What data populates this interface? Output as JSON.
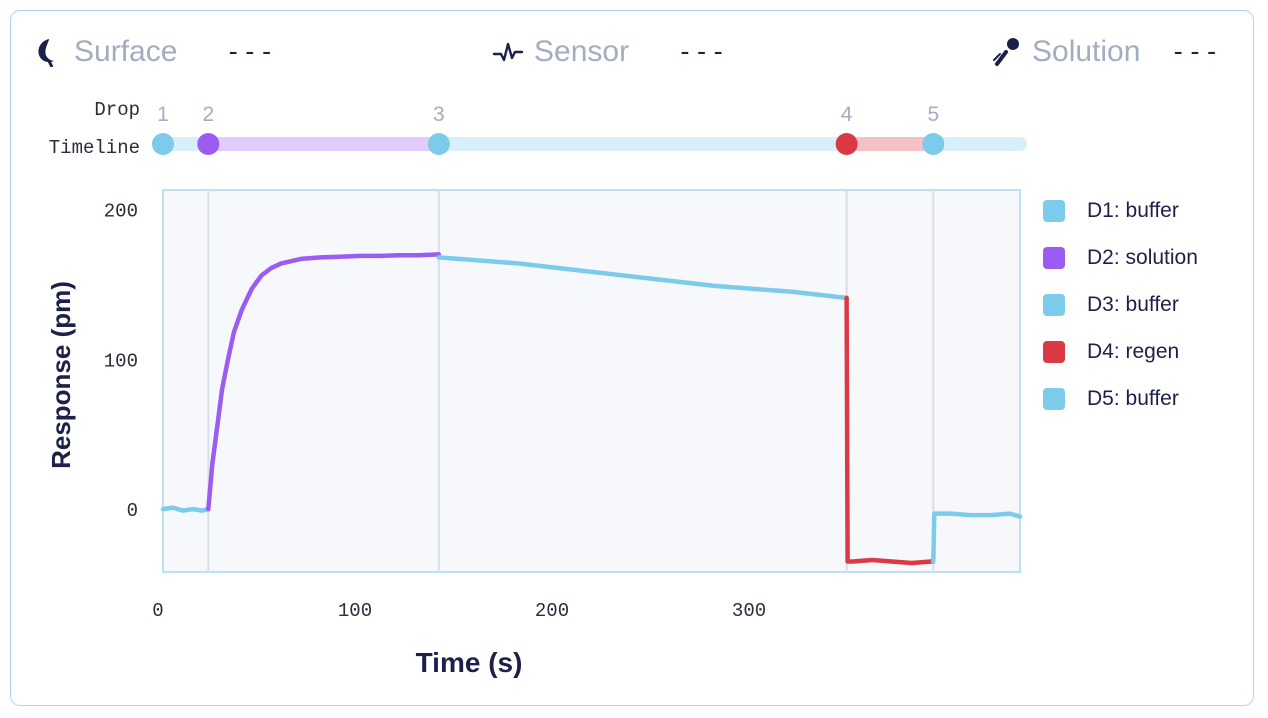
{
  "header": {
    "surface": {
      "label": "Surface",
      "value": "---",
      "icon": "moon-icon"
    },
    "sensor": {
      "label": "Sensor",
      "value": "---",
      "icon": "pulse-icon"
    },
    "solution": {
      "label": "Solution",
      "value": "---",
      "icon": "pipette-icon"
    }
  },
  "timeline": {
    "row1_label": "Drop",
    "row2_label": "Timeline",
    "drops": [
      {
        "number": "1",
        "time": 0,
        "color": "#7dcbea"
      },
      {
        "number": "2",
        "time": 23,
        "color": "#9b5cf2"
      },
      {
        "number": "3",
        "time": 140,
        "color": "#7dcbea"
      },
      {
        "number": "4",
        "time": 347,
        "color": "#db3a45"
      },
      {
        "number": "5",
        "time": 391,
        "color": "#7dcbea"
      }
    ]
  },
  "legend": {
    "items": [
      {
        "label": "D1: buffer",
        "color": "#7dcbea"
      },
      {
        "label": "D2: solution",
        "color": "#9b5cf2"
      },
      {
        "label": "D3: buffer",
        "color": "#7dcbea"
      },
      {
        "label": "D4: regen",
        "color": "#db3a45"
      },
      {
        "label": "D5: buffer",
        "color": "#7dcbea"
      }
    ]
  },
  "chart_data": {
    "type": "line",
    "title": "",
    "xlabel": "Time (s)",
    "ylabel": "Response (pm)",
    "xlim": [
      0,
      435
    ],
    "ylim": [
      -42,
      213
    ],
    "xticks": [
      "0",
      "100",
      "200",
      "300"
    ],
    "xtick_values": [
      0,
      100,
      200,
      300
    ],
    "yticks": [
      "0",
      "100",
      "200"
    ],
    "ytick_values": [
      0,
      100,
      200
    ],
    "grid": false,
    "legend_position": "right",
    "series": [
      {
        "name": "D1: buffer",
        "color": "#7dcbea",
        "x": [
          0,
          5,
          10,
          15,
          20,
          23
        ],
        "y": [
          0,
          1,
          -1,
          0,
          -1,
          0
        ]
      },
      {
        "name": "D2: solution",
        "color": "#9b5cf2",
        "x": [
          23,
          25,
          28,
          30,
          33,
          36,
          40,
          45,
          50,
          55,
          60,
          70,
          80,
          90,
          100,
          110,
          120,
          130,
          140
        ],
        "y": [
          0,
          30,
          60,
          80,
          100,
          118,
          133,
          147,
          156,
          161,
          164,
          167,
          168,
          168.5,
          169,
          169,
          169.5,
          169.5,
          170
        ]
      },
      {
        "name": "D3: buffer",
        "color": "#7dcbea",
        "x": [
          140,
          160,
          180,
          200,
          220,
          240,
          260,
          280,
          300,
          320,
          340,
          347
        ],
        "y": [
          168,
          166,
          164,
          161,
          158,
          155,
          152,
          149,
          147,
          145,
          142,
          141
        ]
      },
      {
        "name": "D4: regen",
        "color": "#db3a45",
        "x": [
          347,
          347.5,
          350,
          360,
          370,
          380,
          390,
          391
        ],
        "y": [
          141,
          -35,
          -35,
          -34,
          -35,
          -36,
          -35,
          -35
        ]
      },
      {
        "name": "D5: buffer",
        "color": "#7dcbea",
        "x": [
          391,
          391.5,
          400,
          410,
          420,
          430,
          435
        ],
        "y": [
          -35,
          -3,
          -3,
          -4,
          -4,
          -3,
          -5
        ]
      }
    ]
  }
}
